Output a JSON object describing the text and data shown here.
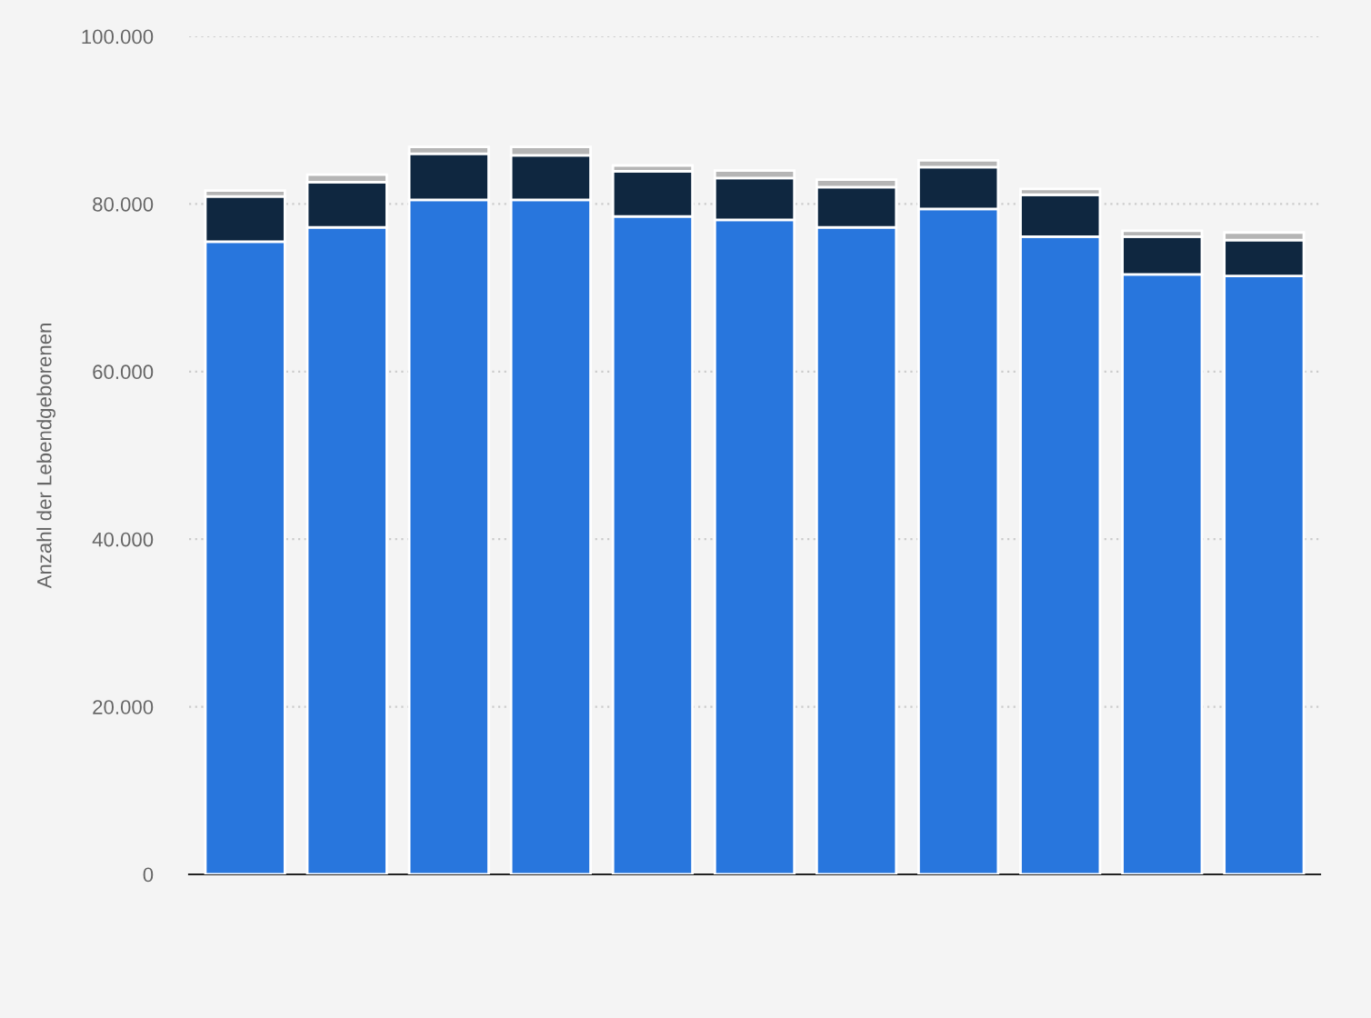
{
  "chart_data": {
    "type": "bar",
    "stacked": true,
    "ylabel": "Anzahl der Lebendgeborenen",
    "categories": [
      null,
      null,
      null,
      null,
      null,
      null,
      null,
      null,
      null,
      null,
      null
    ],
    "series": [
      {
        "color": "#2876dd",
        "values": [
          75500,
          77200,
          80500,
          80500,
          78500,
          78100,
          77200,
          79400,
          76100,
          71600,
          71400
        ]
      },
      {
        "color": "#0f2740",
        "values": [
          5400,
          5400,
          5500,
          5300,
          5400,
          5000,
          4800,
          5000,
          5000,
          4500,
          4300
        ]
      },
      {
        "color": "#b5b5b5",
        "values": [
          700,
          900,
          800,
          1000,
          700,
          900,
          900,
          800,
          700,
          700,
          900
        ]
      }
    ],
    "ylim": [
      0,
      100000
    ],
    "yticks": [
      0,
      {
        "value": 20000,
        "label": "20.000"
      },
      {
        "value": 40000,
        "label": "40.000"
      },
      {
        "value": 60000,
        "label": "60.000"
      },
      {
        "value": 80000,
        "label": "80.000"
      },
      {
        "value": 100000,
        "label": "100.000"
      }
    ],
    "grid": "y"
  }
}
